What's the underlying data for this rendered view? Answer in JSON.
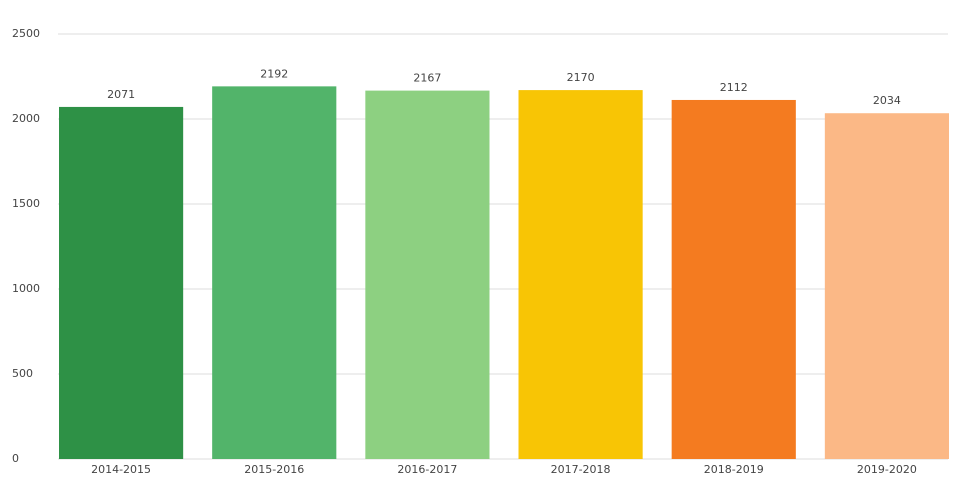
{
  "chart_data": {
    "type": "bar",
    "categories": [
      "2014-2015",
      "2015-2016",
      "2016-2017",
      "2017-2018",
      "2018-2019",
      "2019-2020"
    ],
    "values": [
      2071,
      2192,
      2167,
      2170,
      2112,
      2034
    ],
    "colors": [
      "#2e9146",
      "#52b46a",
      "#8dd081",
      "#f8c505",
      "#f47b20",
      "#fbb886"
    ],
    "ylim": [
      0,
      2500
    ],
    "yticks": [
      0,
      500,
      1000,
      1500,
      2000,
      2500
    ],
    "grid": true
  }
}
